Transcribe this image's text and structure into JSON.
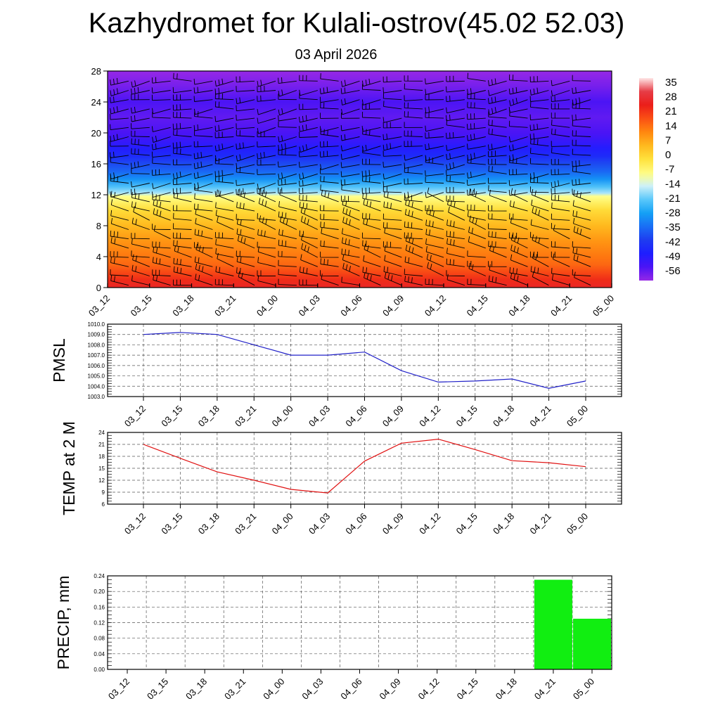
{
  "title": "Kazhydromet for Kulali-ostrov(45.02 52.03)",
  "subtitle": "03 April 2026",
  "colors": {
    "pressure_line": "#2020c8",
    "temp_line": "#e01010",
    "precip_bar": "#11ee11"
  },
  "chart_data": [
    {
      "type": "heatmap",
      "panel": "cross-section",
      "x_ticks": [
        "03_12",
        "03_15",
        "03_18",
        "03_21",
        "04_00",
        "04_03",
        "04_06",
        "04_09",
        "04_12",
        "04_15",
        "04_18",
        "04_21",
        "05_00"
      ],
      "y_ticks": [
        "0",
        "4",
        "8",
        "12",
        "16",
        "20",
        "24",
        "28"
      ],
      "ylim": [
        0,
        28
      ],
      "colorbar_labels": [
        "35",
        "28",
        "21",
        "14",
        "7",
        "0",
        "-7",
        "-14",
        "-21",
        "-28",
        "-35",
        "-42",
        "-49",
        "-56"
      ],
      "colorbar_range": [
        -63,
        42
      ],
      "temperature_profile": {
        "heights": [
          0,
          1,
          2,
          3,
          4,
          6,
          8,
          10,
          11,
          11.8,
          12.2,
          13,
          14,
          15,
          16,
          17,
          18,
          19,
          20,
          21,
          22,
          23,
          24,
          26,
          28
        ],
        "values": [
          30,
          26,
          22,
          18,
          16,
          12,
          7,
          1,
          -4,
          -8,
          -16,
          -22,
          -30,
          -36,
          -40,
          -46,
          -50,
          -53,
          -56,
          -57,
          -58,
          -57,
          -56,
          -60,
          -63
        ]
      },
      "wind_barbs": true
    },
    {
      "type": "line",
      "ylabel": "PMSL",
      "x": [
        "03_12",
        "03_15",
        "03_18",
        "03_21",
        "04_00",
        "04_03",
        "04_06",
        "04_09",
        "04_12",
        "04_15",
        "04_18",
        "04_21",
        "05_00"
      ],
      "y_ticks": [
        "1010.0",
        "1009.0",
        "1008.0",
        "1007.0",
        "1006.0",
        "1005.0",
        "1004.0",
        "1003.0"
      ],
      "ylim": [
        1003,
        1010
      ],
      "grid": true,
      "series": [
        {
          "values": [
            1009.0,
            1009.2,
            1009.0,
            1008.0,
            1007.0,
            1007.0,
            1007.3,
            1005.5,
            1004.4,
            1004.5,
            1004.7,
            1003.8,
            1004.5
          ]
        }
      ]
    },
    {
      "type": "line",
      "ylabel": "TEMP at 2 M",
      "x": [
        "03_12",
        "03_15",
        "03_18",
        "03_21",
        "04_00",
        "04_03",
        "04_06",
        "04_09",
        "04_12",
        "04_15",
        "04_18",
        "04_21",
        "05_00"
      ],
      "y_ticks": [
        "24",
        "21",
        "18",
        "15",
        "12",
        "9",
        "6"
      ],
      "ylim": [
        6,
        24
      ],
      "grid": true,
      "series": [
        {
          "values": [
            21.0,
            17.5,
            14.1,
            12.0,
            9.7,
            8.8,
            16.8,
            21.3,
            22.3,
            19.7,
            16.9,
            16.4,
            15.4
          ]
        }
      ]
    },
    {
      "type": "bar",
      "ylabel": "PRECIP, mm",
      "categories": [
        "03_12",
        "03_15",
        "03_18",
        "03_21",
        "04_00",
        "04_03",
        "04_06",
        "04_09",
        "04_12",
        "04_15",
        "04_18",
        "04_21",
        "05_00"
      ],
      "y_ticks": [
        "0.24",
        "0.20",
        "0.16",
        "0.12",
        "0.08",
        "0.04",
        "0.00"
      ],
      "ylim": [
        0,
        0.24
      ],
      "grid": true,
      "values": [
        0,
        0,
        0,
        0,
        0,
        0,
        0,
        0,
        0,
        0,
        0,
        0.23,
        0.13
      ]
    }
  ]
}
